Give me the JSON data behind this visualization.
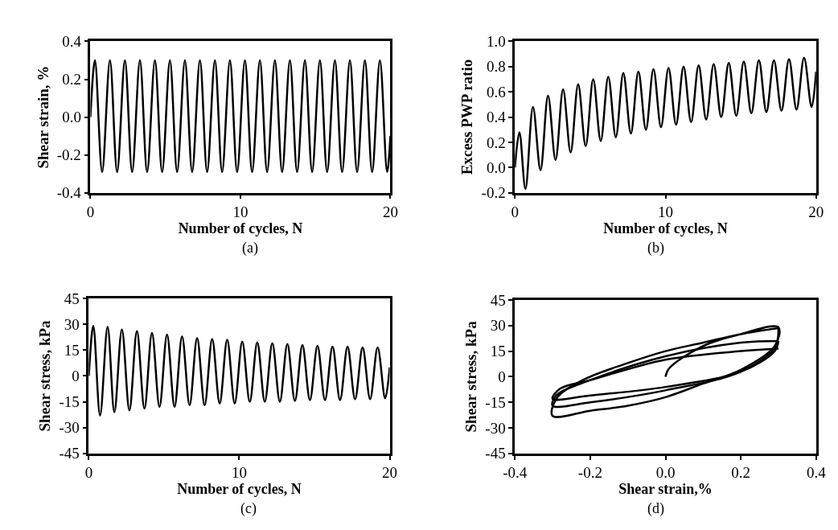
{
  "chart_data": [
    {
      "type": "line",
      "xlabel": "Number of cycles, N",
      "ylabel": "Shear strain, %",
      "annotations": [
        "(a)"
      ],
      "color": "#000000",
      "marker": "none",
      "x": [
        0,
        0.3,
        0.78,
        1.3,
        1.78,
        2.3,
        2.78,
        3.3,
        3.78,
        4.3,
        4.78,
        5.3,
        5.78,
        6.3,
        6.78,
        7.3,
        7.78,
        8.3,
        8.78,
        9.3,
        9.78,
        10.3,
        10.78,
        11.3,
        11.78,
        12.3,
        12.78,
        13.3,
        13.78,
        14.3,
        14.78,
        15.3,
        15.78,
        16.3,
        16.78,
        17.3,
        17.78,
        18.3,
        18.78,
        19.3,
        19.78,
        20
      ],
      "values": [
        0,
        0.3,
        -0.29,
        0.3,
        -0.29,
        0.3,
        -0.29,
        0.3,
        -0.29,
        0.3,
        -0.29,
        0.3,
        -0.29,
        0.3,
        -0.29,
        0.3,
        -0.29,
        0.3,
        -0.29,
        0.3,
        -0.29,
        0.3,
        -0.29,
        0.3,
        -0.29,
        0.3,
        -0.29,
        0.3,
        -0.29,
        0.3,
        -0.29,
        0.3,
        -0.29,
        0.3,
        -0.29,
        0.3,
        -0.29,
        0.3,
        -0.29,
        0.3,
        -0.29,
        -0.1
      ],
      "xlim": [
        0,
        20
      ],
      "xticks": [
        0,
        10,
        20
      ],
      "ylim": [
        -0.4,
        0.4
      ],
      "yticks": [
        {
          "value": -0.4,
          "label": "-0.4"
        },
        {
          "value": -0.2,
          "label": "-0.2"
        },
        {
          "value": 0,
          "label": "0.0"
        },
        {
          "value": 0.2,
          "label": "0.2"
        },
        {
          "value": 0.4,
          "label": "0.4"
        }
      ]
    },
    {
      "type": "line",
      "xlabel": "Number of cycles, N",
      "ylabel": "Excess PWP ratio",
      "annotations": [
        "(b)"
      ],
      "color": "#000000",
      "marker": "none",
      "x": [
        0,
        0.3,
        0.7,
        1.2,
        1.7,
        2.2,
        2.7,
        3.2,
        3.7,
        4.2,
        4.7,
        5.2,
        5.7,
        6.2,
        6.7,
        7.2,
        7.7,
        8.2,
        8.7,
        9.2,
        9.7,
        10.2,
        10.7,
        11.2,
        11.7,
        12.2,
        12.7,
        13.2,
        13.7,
        14.2,
        14.7,
        15.2,
        15.7,
        16.2,
        16.7,
        17.2,
        17.7,
        18.2,
        18.7,
        19.2,
        19.7,
        20
      ],
      "values": [
        0,
        0.28,
        -0.17,
        0.48,
        -0.02,
        0.57,
        0.06,
        0.62,
        0.12,
        0.66,
        0.17,
        0.7,
        0.21,
        0.72,
        0.24,
        0.75,
        0.27,
        0.76,
        0.3,
        0.78,
        0.32,
        0.79,
        0.34,
        0.8,
        0.36,
        0.81,
        0.38,
        0.82,
        0.4,
        0.83,
        0.41,
        0.84,
        0.43,
        0.85,
        0.44,
        0.85,
        0.45,
        0.86,
        0.46,
        0.87,
        0.48,
        0.76
      ],
      "xlim": [
        0,
        20
      ],
      "xticks": [
        0,
        10,
        20
      ],
      "ylim": [
        -0.2,
        1.0
      ],
      "yticks": [
        {
          "value": -0.2,
          "label": "-0.2"
        },
        {
          "value": 0,
          "label": "0.0"
        },
        {
          "value": 0.2,
          "label": "0.2"
        },
        {
          "value": 0.4,
          "label": "0.4"
        },
        {
          "value": 0.6,
          "label": "0.6"
        },
        {
          "value": 0.8,
          "label": "0.8"
        },
        {
          "value": 1.0,
          "label": "1.0"
        }
      ]
    },
    {
      "type": "line",
      "xlabel": "Number of cycles, N",
      "ylabel": "Shear stress, kPa",
      "annotations": [
        "(c)"
      ],
      "color": "#000000",
      "marker": "none",
      "x": [
        0,
        0.3,
        0.75,
        1.25,
        1.7,
        2.2,
        2.7,
        3.2,
        3.7,
        4.2,
        4.7,
        5.2,
        5.7,
        6.2,
        6.7,
        7.2,
        7.7,
        8.2,
        8.7,
        9.2,
        9.7,
        10.2,
        10.7,
        11.2,
        11.7,
        12.2,
        12.7,
        13.2,
        13.7,
        14.2,
        14.7,
        15.2,
        15.7,
        16.2,
        16.7,
        17.2,
        17.7,
        18.2,
        18.7,
        19.2,
        19.7,
        20
      ],
      "values": [
        0,
        29,
        -23,
        28.5,
        -21,
        27,
        -20,
        26,
        -19,
        25,
        -18,
        24,
        -18,
        23,
        -17,
        22,
        -17,
        21.5,
        -16,
        21,
        -16,
        20,
        -15,
        19.5,
        -15,
        19,
        -15,
        18.5,
        -14.5,
        18,
        -14,
        17.5,
        -14,
        17,
        -14,
        17,
        -13.5,
        16.5,
        -13.5,
        16.5,
        -13,
        5
      ],
      "xlim": [
        0,
        20
      ],
      "xticks": [
        0,
        10,
        20
      ],
      "ylim": [
        -45,
        45
      ],
      "yticks": [
        -45,
        -30,
        -15,
        0,
        15,
        30,
        45
      ]
    },
    {
      "type": "line",
      "xlabel": "Shear strain,%",
      "ylabel": "Shear stress, kPa",
      "annotations": [
        "(d)"
      ],
      "marker": "none",
      "series": [
        {
          "color": "#000000",
          "x": [
            0,
            0.01,
            0.1,
            0.2,
            0.3,
            0.29,
            0.2,
            0.1,
            0,
            -0.1,
            -0.2,
            -0.3,
            -0.29,
            -0.22,
            -0.1,
            0,
            0.1,
            0.2,
            0.3
          ],
          "values": [
            0,
            5,
            18,
            25,
            29,
            18,
            4,
            -4,
            -12,
            -17,
            -20,
            -23,
            -13,
            -2,
            8,
            15,
            20,
            25,
            28.5
          ]
        },
        {
          "color": "#000000",
          "x": [
            0.3,
            0.29,
            0.2,
            0,
            -0.2,
            -0.3,
            -0.29,
            -0.2,
            0,
            0.2,
            0.3
          ],
          "values": [
            28.5,
            17,
            3,
            -8,
            -15,
            -17,
            -11,
            -2,
            12,
            20,
            21
          ]
        },
        {
          "color": "#000000",
          "x": [
            0.3,
            0.29,
            0.2,
            0,
            -0.2,
            -0.3,
            -0.28,
            -0.2,
            0,
            0.2,
            0.3
          ],
          "values": [
            21,
            15,
            3,
            -6,
            -11,
            -13,
            -7,
            -2,
            10,
            15,
            16.5
          ]
        }
      ],
      "xlim": [
        -0.4,
        0.4
      ],
      "xticks": [
        {
          "value": -0.4,
          "label": "-0.4"
        },
        {
          "value": -0.2,
          "label": "-0.2"
        },
        {
          "value": 0,
          "label": "0.0"
        },
        {
          "value": 0.2,
          "label": "0.2"
        },
        {
          "value": 0.4,
          "label": "0.4"
        }
      ],
      "ylim": [
        -45,
        45
      ],
      "yticks": [
        -45,
        -30,
        -15,
        0,
        15,
        30,
        45
      ]
    }
  ]
}
